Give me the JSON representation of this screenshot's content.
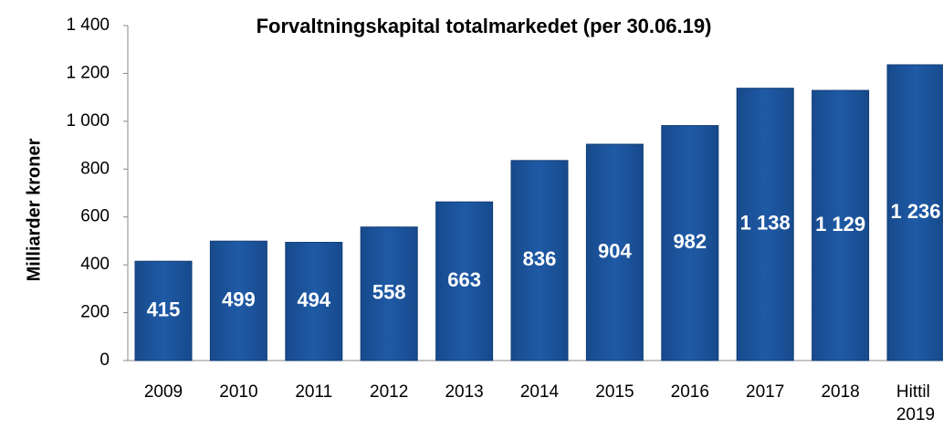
{
  "chart_data": {
    "type": "bar",
    "title": "Forvaltningskapital totalmarkedet (per 30.06.19)",
    "y_label": "Milliarder kroner",
    "categories": [
      "2009",
      "2010",
      "2011",
      "2012",
      "2013",
      "2014",
      "2015",
      "2016",
      "2017",
      "2018",
      "Hittil 2019"
    ],
    "values": [
      415,
      499,
      494,
      558,
      663,
      836,
      904,
      982,
      1138,
      1129,
      1236
    ],
    "value_labels": [
      "415",
      "499",
      "494",
      "558",
      "663",
      "836",
      "904",
      "982",
      "1 138",
      "1 129",
      "1 236"
    ],
    "color": "#1f5aa6",
    "ylim": [
      0,
      1400
    ],
    "yticks": [
      0,
      200,
      400,
      600,
      800,
      {
        "value": 1000,
        "label": "1 000"
      },
      {
        "value": 1200,
        "label": "1 200"
      },
      {
        "value": 1400,
        "label": "1 400"
      }
    ],
    "grid": false
  }
}
